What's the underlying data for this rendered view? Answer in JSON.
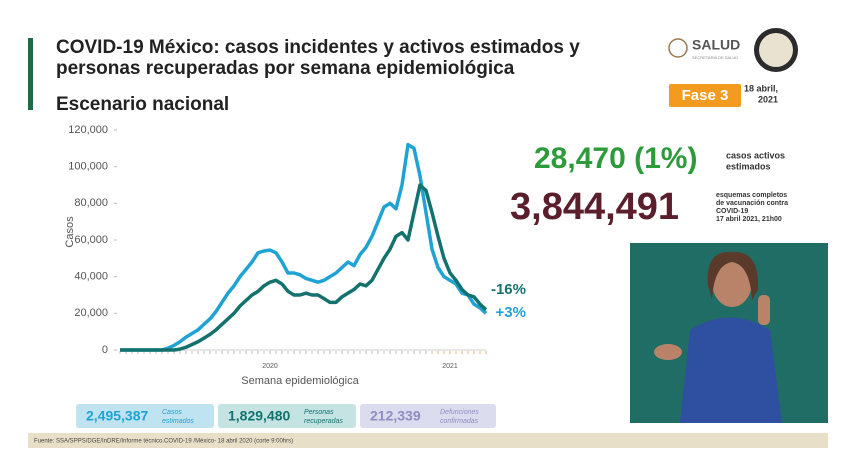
{
  "header": {
    "title_line1": "COVID-19 México: casos incidentes y activos estimados y",
    "title_line2": "personas recuperadas por semana epidemiológica",
    "subtitle": "Escenario nacional",
    "logo": "SALUD",
    "logo_sub": "SECRETARÍA DE SALUD",
    "phase": "Fase 3",
    "date_line1": "18 abril,",
    "date_line2": "2021"
  },
  "stats": {
    "active": "28,470 (1%)",
    "active_label1": "casos activos",
    "active_label2": "estimados",
    "vaccine": "3,844,491",
    "vaccine_label1": "esquemas completos",
    "vaccine_label2": "de vacunación contra",
    "vaccine_label3": "COVID-19",
    "vaccine_label4": "17 abril 2021, 21h00"
  },
  "boxes": [
    {
      "value": "2,495,387",
      "label1": "Casos",
      "label2": "estimados"
    },
    {
      "value": "1,829,480",
      "label1": "Personas",
      "label2": "recuperadas"
    },
    {
      "value": "212,339",
      "label1": "Defunciones",
      "label2": "confirmadas"
    }
  ],
  "footer": "Fuente: SSA/SPPS/DGE/InDRE/Informe técnico.COVID-19 /México- 18 abril 2020 (corte 9:00hrs)",
  "chart_data": {
    "type": "line",
    "ylabel": "Casos",
    "xlabel": "Semana epidemiológica",
    "categories": [
      null,
      null,
      null,
      null,
      null,
      null,
      null,
      null,
      null,
      null,
      null,
      null,
      null,
      null,
      null,
      null,
      null,
      null,
      null,
      null,
      null,
      null,
      null,
      null,
      null,
      null,
      null,
      null,
      null,
      null,
      null,
      null,
      null,
      null,
      null,
      null,
      null,
      null,
      null,
      null,
      null,
      null,
      null,
      null,
      null,
      null,
      null,
      null,
      null,
      null,
      null,
      null,
      null,
      null,
      null,
      null,
      null,
      null,
      null,
      null,
      null,
      null
    ],
    "series": [
      {
        "color": "#1fa3d4",
        "values": [
          0,
          0,
          0,
          0,
          0,
          0,
          0,
          0,
          1000,
          2500,
          4500,
          7000,
          9000,
          11000,
          14000,
          17000,
          21000,
          26000,
          31000,
          35000,
          40000,
          44000,
          48000,
          53000,
          54000,
          54500,
          53000,
          48000,
          42000,
          42000,
          41000,
          39000,
          38000,
          37000,
          38000,
          40000,
          42000,
          45000,
          48000,
          46000,
          52000,
          56000,
          62000,
          70000,
          78000,
          80000,
          77000,
          90000,
          112000,
          110000,
          95000,
          75000,
          55000,
          45000,
          40000,
          38000,
          36000,
          31000,
          30000,
          25000,
          23000,
          20000
        ]
      },
      {
        "color": "#14726e",
        "values": [
          0,
          0,
          0,
          0,
          0,
          0,
          0,
          0,
          0,
          0,
          500,
          1500,
          3000,
          4500,
          6500,
          8500,
          11000,
          14000,
          17000,
          20000,
          24000,
          27000,
          30000,
          32000,
          35000,
          37000,
          38000,
          36000,
          32000,
          30000,
          30000,
          31000,
          30000,
          30000,
          28000,
          26000,
          26000,
          29000,
          31000,
          33000,
          36000,
          35000,
          38000,
          44000,
          50000,
          55000,
          62000,
          64000,
          60000,
          75000,
          90000,
          87000,
          75000,
          62000,
          50000,
          42000,
          38000,
          33000,
          30000,
          29000,
          25000,
          22000
        ]
      }
    ],
    "ylim": [
      0,
      120000
    ],
    "yticks": [
      0,
      {
        "value": 20000,
        "label": "20,000"
      },
      {
        "value": 40000,
        "label": "40,000"
      },
      {
        "value": 60000,
        "label": "60,000"
      },
      {
        "value": 80000,
        "label": "80,000"
      },
      {
        "value": 100000,
        "label": "100,000"
      },
      {
        "value": 120000,
        "label": "120,000"
      }
    ],
    "xlim": [
      0,
      61
    ],
    "xticks": [
      {
        "value": 25,
        "label": "2020"
      },
      {
        "value": 55,
        "label": "2021"
      }
    ],
    "annotations": [
      {
        "text": "-16%",
        "color": "#14726e"
      },
      {
        "text": "+3%",
        "color": "#1fa3d4"
      }
    ]
  }
}
